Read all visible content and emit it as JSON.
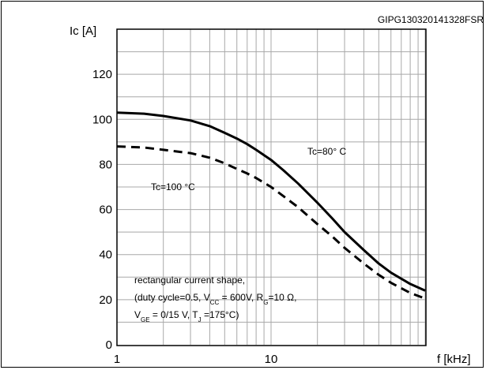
{
  "chart_data": {
    "type": "line",
    "figure_id": "GIPG130320141328FSR",
    "ylabel": "Ic [A]",
    "xlabel": "f [kHz]",
    "x_scale": "log",
    "xlim": [
      1,
      100
    ],
    "ylim": [
      0,
      140
    ],
    "x_ticks": [
      "1",
      "10"
    ],
    "y_ticks": [
      "0",
      "20",
      "40",
      "60",
      "80",
      "100",
      "120"
    ],
    "grid": true,
    "series": [
      {
        "name": "Tc=80° C",
        "style": "solid",
        "points": [
          [
            1,
            103
          ],
          [
            1.5,
            102.5
          ],
          [
            2,
            101.5
          ],
          [
            3,
            99.5
          ],
          [
            4,
            97
          ],
          [
            5,
            94
          ],
          [
            6,
            91.5
          ],
          [
            7,
            89
          ],
          [
            8,
            86.5
          ],
          [
            10,
            82
          ],
          [
            12,
            77.5
          ],
          [
            15,
            71.5
          ],
          [
            20,
            63
          ],
          [
            25,
            56
          ],
          [
            30,
            50
          ],
          [
            40,
            42
          ],
          [
            50,
            36
          ],
          [
            60,
            32
          ],
          [
            80,
            27
          ],
          [
            100,
            24
          ]
        ]
      },
      {
        "name": "Tc=100 °C",
        "style": "dashed",
        "points": [
          [
            1,
            88
          ],
          [
            1.5,
            87.5
          ],
          [
            2,
            86.5
          ],
          [
            3,
            85
          ],
          [
            4,
            83
          ],
          [
            5,
            80.5
          ],
          [
            6,
            78
          ],
          [
            7,
            76
          ],
          [
            8,
            74
          ],
          [
            10,
            70
          ],
          [
            12,
            66
          ],
          [
            15,
            61
          ],
          [
            20,
            53.5
          ],
          [
            25,
            48
          ],
          [
            30,
            43
          ],
          [
            40,
            36
          ],
          [
            50,
            31
          ],
          [
            60,
            27.5
          ],
          [
            80,
            23
          ],
          [
            100,
            20.5
          ]
        ]
      }
    ],
    "annotation": {
      "line1": "rectangular current shape,",
      "line2_parts": [
        "(duty cycle=0.5, V",
        "CC",
        " = 600V, R",
        "G",
        "=10 Ω,"
      ],
      "line3_parts": [
        "V",
        "GE",
        " = 0/15 V, T",
        "J",
        " =175°C)"
      ]
    }
  }
}
